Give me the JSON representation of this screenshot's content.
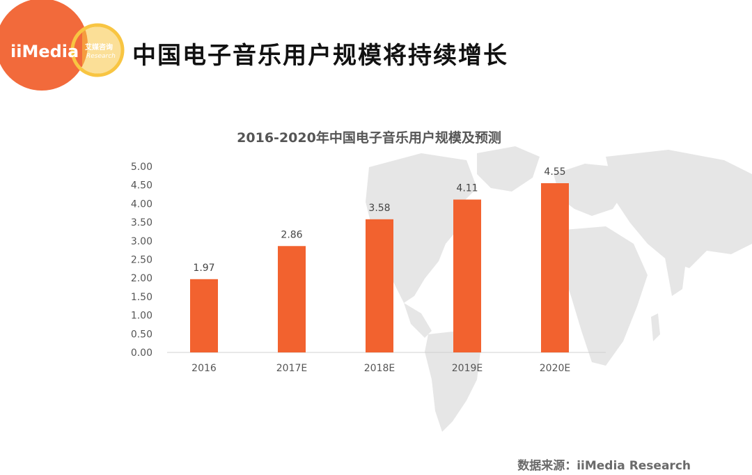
{
  "logo": {
    "brand": "iiMedia",
    "cn_name": "艾媒咨询",
    "sub": "Research",
    "colors": {
      "circle": "#f26a3b",
      "ring": "#f8c542"
    }
  },
  "slide": {
    "title": "中国电子音乐用户规模将持续增长"
  },
  "chart_data": {
    "type": "bar",
    "title": "2016-2020年中国电子音乐用户规模及预测",
    "categories": [
      "2016",
      "2017E",
      "2018E",
      "2019E",
      "2020E"
    ],
    "values": [
      1.97,
      2.86,
      3.58,
      4.11,
      4.55
    ],
    "data_labels": [
      "1.97",
      "2.86",
      "3.58",
      "4.11",
      "4.55"
    ],
    "y_ticks": [
      "0.00",
      "0.50",
      "1.00",
      "1.50",
      "2.00",
      "2.50",
      "3.00",
      "3.50",
      "4.00",
      "4.50",
      "5.00"
    ],
    "ylim": [
      0,
      5
    ],
    "grid": false,
    "bar_color": "#f2622f"
  },
  "footer": {
    "source": "数据来源：iiMedia Research"
  }
}
